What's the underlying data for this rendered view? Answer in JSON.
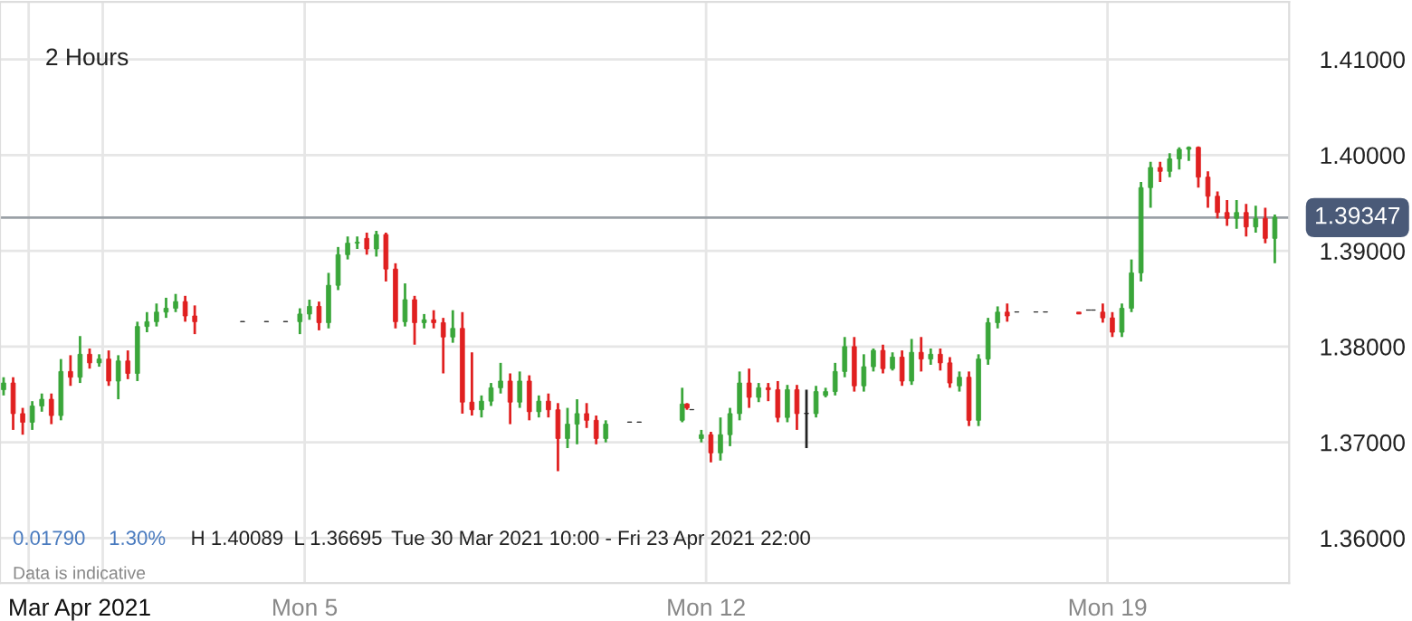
{
  "chart_data": {
    "type": "candlestick",
    "x": [
      "2021-03-30T18:00",
      "2021-03-30T22:00",
      "2021-03-31T02:00",
      "2021-03-31T06:00",
      "2021-03-31T10:00",
      "2021-03-31T14:00",
      "2021-03-31T18:00",
      "2021-03-31T22:00",
      "2021-04-01T02:00",
      "2021-04-01T06:00",
      "2021-04-01T10:00",
      "2021-04-01T14:00",
      "2021-04-01T18:00",
      "2021-04-01T22:00",
      "2021-04-02T02:00",
      "2021-04-02T06:00",
      "2021-04-02T10:00",
      "2021-04-02T14:00",
      "2021-04-02T18:00",
      "2021-04-02T22:00",
      "2021-04-03T02:00",
      "2021-04-03T22:00",
      "2021-04-04T08:00",
      "2021-04-04T16:00",
      "2021-04-04T22:00",
      "2021-04-05T02:00",
      "2021-04-05T06:00",
      "2021-04-05T10:00",
      "2021-04-05T14:00",
      "2021-04-05T18:00",
      "2021-04-05T22:00",
      "2021-04-06T02:00",
      "2021-04-06T06:00",
      "2021-04-06T10:00",
      "2021-04-06T14:00",
      "2021-04-06T18:00",
      "2021-04-06T22:00",
      "2021-04-07T02:00",
      "2021-04-07T06:00",
      "2021-04-07T10:00",
      "2021-04-07T14:00",
      "2021-04-07T18:00",
      "2021-04-07T22:00",
      "2021-04-08T02:00",
      "2021-04-08T06:00",
      "2021-04-08T10:00",
      "2021-04-08T14:00",
      "2021-04-08T18:00",
      "2021-04-08T22:00",
      "2021-04-09T02:00",
      "2021-04-09T06:00",
      "2021-04-09T10:00",
      "2021-04-09T14:00",
      "2021-04-09T18:00",
      "2021-04-09T22:00",
      "2021-04-10T02:00",
      "2021-04-10T06:00",
      "2021-04-10T16:00",
      "2021-04-10T20:00",
      "2021-04-11T14:00",
      "2021-04-11T16:00",
      "2021-04-11T18:00",
      "2021-04-11T22:00",
      "2021-04-12T02:00",
      "2021-04-12T06:00",
      "2021-04-12T10:00",
      "2021-04-12T14:00",
      "2021-04-12T18:00",
      "2021-04-12T22:00",
      "2021-04-13T02:00",
      "2021-04-13T06:00",
      "2021-04-13T10:00",
      "2021-04-13T14:00",
      "2021-04-13T18:00",
      "2021-04-13T22:00",
      "2021-04-14T02:00",
      "2021-04-14T06:00",
      "2021-04-14T10:00",
      "2021-04-14T14:00",
      "2021-04-14T18:00",
      "2021-04-14T22:00",
      "2021-04-15T02:00",
      "2021-04-15T06:00",
      "2021-04-15T10:00",
      "2021-04-15T14:00",
      "2021-04-15T18:00",
      "2021-04-15T22:00",
      "2021-04-16T02:00",
      "2021-04-16T06:00",
      "2021-04-16T10:00",
      "2021-04-16T14:00",
      "2021-04-16T18:00",
      "2021-04-16T22:00",
      "2021-04-17T02:00",
      "2021-04-17T06:00",
      "2021-04-17T10:00",
      "2021-04-17T18:00",
      "2021-04-17T22:00",
      "2021-04-18T12:00",
      "2021-04-18T16:00",
      "2021-04-18T18:00",
      "2021-04-18T22:00",
      "2021-04-19T02:00",
      "2021-04-19T06:00",
      "2021-04-19T10:00",
      "2021-04-19T14:00",
      "2021-04-19T18:00",
      "2021-04-19T22:00",
      "2021-04-20T02:00",
      "2021-04-20T06:00",
      "2021-04-20T10:00",
      "2021-04-20T14:00",
      "2021-04-20T18:00",
      "2021-04-20T22:00",
      "2021-04-21T02:00",
      "2021-04-21T06:00",
      "2021-04-21T10:00",
      "2021-04-21T14:00",
      "2021-04-21T18:00",
      "2021-04-21T22:00"
    ],
    "ohlc": [
      [
        1.3755,
        1.3768,
        1.3749,
        1.3762
      ],
      [
        1.3762,
        1.3768,
        1.3713,
        1.373
      ],
      [
        1.373,
        1.3736,
        1.3708,
        1.3721
      ],
      [
        1.3721,
        1.3743,
        1.3713,
        1.3738
      ],
      [
        1.3738,
        1.3751,
        1.3732,
        1.3745
      ],
      [
        1.3745,
        1.3751,
        1.3719,
        1.3728
      ],
      [
        1.3728,
        1.3787,
        1.3723,
        1.3774
      ],
      [
        1.3774,
        1.3791,
        1.3759,
        1.3768
      ],
      [
        1.3768,
        1.3811,
        1.3762,
        1.3792
      ],
      [
        1.3792,
        1.3798,
        1.3777,
        1.3783
      ],
      [
        1.3783,
        1.3792,
        1.3779,
        1.3787
      ],
      [
        1.3787,
        1.3796,
        1.3759,
        1.3764
      ],
      [
        1.3764,
        1.3791,
        1.3745,
        1.3785
      ],
      [
        1.3785,
        1.3796,
        1.3766,
        1.3772
      ],
      [
        1.3772,
        1.3826,
        1.3764,
        1.3821
      ],
      [
        1.3821,
        1.3836,
        1.3815,
        1.3826
      ],
      [
        1.3826,
        1.3845,
        1.3821,
        1.3836
      ],
      [
        1.3836,
        1.3851,
        1.383,
        1.384
      ],
      [
        1.384,
        1.3855,
        1.3836,
        1.3847
      ],
      [
        1.3847,
        1.3853,
        1.3826,
        1.3832
      ],
      [
        1.3832,
        1.3843,
        1.3813,
        1.3826
      ],
      [
        1.3826,
        1.3826,
        1.3826,
        1.3826
      ],
      [
        1.3826,
        1.3826,
        1.3826,
        1.3826
      ],
      [
        1.3826,
        1.3826,
        1.3826,
        1.3826
      ],
      [
        1.3826,
        1.384,
        1.3813,
        1.3834
      ],
      [
        1.3834,
        1.3849,
        1.3828,
        1.3842
      ],
      [
        1.3842,
        1.3847,
        1.3817,
        1.3825
      ],
      [
        1.3825,
        1.3877,
        1.3819,
        1.3864
      ],
      [
        1.3864,
        1.3904,
        1.3859,
        1.3896
      ],
      [
        1.3896,
        1.3915,
        1.3891,
        1.3908
      ],
      [
        1.3908,
        1.3915,
        1.3902,
        1.3909
      ],
      [
        1.3913,
        1.3919,
        1.3896,
        1.3902
      ],
      [
        1.3902,
        1.3921,
        1.3894,
        1.3917
      ],
      [
        1.3917,
        1.3919,
        1.3868,
        1.3881
      ],
      [
        1.3881,
        1.3887,
        1.3819,
        1.3826
      ],
      [
        1.3826,
        1.3866,
        1.3821,
        1.3849
      ],
      [
        1.3849,
        1.3853,
        1.3802,
        1.3825
      ],
      [
        1.3825,
        1.3834,
        1.3819,
        1.3828
      ],
      [
        1.3828,
        1.3838,
        1.3819,
        1.3825
      ],
      [
        1.3825,
        1.383,
        1.3772,
        1.381
      ],
      [
        1.381,
        1.3838,
        1.3804,
        1.3819
      ],
      [
        1.3819,
        1.3836,
        1.373,
        1.3742
      ],
      [
        1.3742,
        1.3794,
        1.3728,
        1.3734
      ],
      [
        1.3734,
        1.3749,
        1.3726,
        1.3743
      ],
      [
        1.3743,
        1.3762,
        1.3738,
        1.3757
      ],
      [
        1.3757,
        1.3783,
        1.3751,
        1.3764
      ],
      [
        1.3764,
        1.3772,
        1.3719,
        1.3742
      ],
      [
        1.3742,
        1.3774,
        1.3736,
        1.3764
      ],
      [
        1.3764,
        1.377,
        1.3723,
        1.3732
      ],
      [
        1.3732,
        1.3749,
        1.3726,
        1.3743
      ],
      [
        1.3743,
        1.3751,
        1.3726,
        1.3734
      ],
      [
        1.3734,
        1.3741,
        1.367,
        1.3704
      ],
      [
        1.3704,
        1.3736,
        1.3694,
        1.3719
      ],
      [
        1.3719,
        1.3745,
        1.3698,
        1.373
      ],
      [
        1.373,
        1.3741,
        1.3715,
        1.3723
      ],
      [
        1.3723,
        1.3728,
        1.3698,
        1.3704
      ],
      [
        1.3704,
        1.3723,
        1.37,
        1.3719
      ],
      [
        1.3721,
        1.3721,
        1.3721,
        1.3721
      ],
      [
        1.3721,
        1.3721,
        1.3721,
        1.3721
      ],
      [
        1.3723,
        1.3757,
        1.3721,
        1.374
      ],
      [
        1.374,
        1.3741,
        1.3734,
        1.3736
      ],
      [
        1.3734,
        1.3734,
        1.3734,
        1.3734
      ],
      [
        1.3704,
        1.3713,
        1.37,
        1.3708
      ],
      [
        1.3708,
        1.3711,
        1.3679,
        1.3689
      ],
      [
        1.3689,
        1.3726,
        1.3681,
        1.3708
      ],
      [
        1.3708,
        1.3736,
        1.3696,
        1.373
      ],
      [
        1.373,
        1.3774,
        1.3723,
        1.3762
      ],
      [
        1.3762,
        1.3777,
        1.3736,
        1.3747
      ],
      [
        1.3747,
        1.3762,
        1.3742,
        1.3757
      ],
      [
        1.3757,
        1.3762,
        1.3743,
        1.3755
      ],
      [
        1.3755,
        1.3764,
        1.3721,
        1.3726
      ],
      [
        1.3726,
        1.376,
        1.3721,
        1.3755
      ],
      [
        1.3755,
        1.376,
        1.3713,
        1.373
      ],
      [
        1.373,
        1.3755,
        1.3694,
        1.373
      ],
      [
        1.373,
        1.3759,
        1.3726,
        1.3753
      ],
      [
        1.3749,
        1.3757,
        1.3747,
        1.3753
      ],
      [
        1.3753,
        1.3783,
        1.3749,
        1.3774
      ],
      [
        1.3774,
        1.381,
        1.3768,
        1.38
      ],
      [
        1.38,
        1.381,
        1.3753,
        1.3759
      ],
      [
        1.3759,
        1.3792,
        1.3753,
        1.3779
      ],
      [
        1.3779,
        1.3798,
        1.3774,
        1.3796
      ],
      [
        1.3796,
        1.3802,
        1.3772,
        1.3777
      ],
      [
        1.3777,
        1.3794,
        1.3775,
        1.3789
      ],
      [
        1.3789,
        1.3796,
        1.3759,
        1.3764
      ],
      [
        1.3764,
        1.3808,
        1.376,
        1.3794
      ],
      [
        1.3794,
        1.381,
        1.3774,
        1.3787
      ],
      [
        1.3787,
        1.3798,
        1.3781,
        1.3792
      ],
      [
        1.3792,
        1.3798,
        1.3775,
        1.3783
      ],
      [
        1.3783,
        1.3789,
        1.3757,
        1.3762
      ],
      [
        1.3759,
        1.3774,
        1.3753,
        1.3768
      ],
      [
        1.3768,
        1.3774,
        1.3717,
        1.3723
      ],
      [
        1.3723,
        1.3792,
        1.3717,
        1.3787
      ],
      [
        1.3787,
        1.383,
        1.3781,
        1.3825
      ],
      [
        1.3825,
        1.3842,
        1.3819,
        1.3836
      ],
      [
        1.3836,
        1.3845,
        1.3826,
        1.3832
      ],
      [
        1.3836,
        1.3836,
        1.3836,
        1.3836
      ],
      [
        1.3836,
        1.3836,
        1.3836,
        1.3836
      ],
      [
        1.3836,
        1.3836,
        1.3836,
        1.3836
      ],
      [
        1.3836,
        1.3836,
        1.3834,
        1.3834
      ],
      [
        1.3838,
        1.3838,
        1.3838,
        1.3838
      ],
      [
        1.3838,
        1.3838,
        1.3838,
        1.3838
      ],
      [
        1.3836,
        1.3845,
        1.3825,
        1.383
      ],
      [
        1.383,
        1.3836,
        1.381,
        1.3815
      ],
      [
        1.3815,
        1.3845,
        1.381,
        1.384
      ],
      [
        1.384,
        1.3891,
        1.3836,
        1.3877
      ],
      [
        1.3877,
        1.3972,
        1.3868,
        1.3966
      ],
      [
        1.3966,
        1.3993,
        1.3945,
        1.3987
      ],
      [
        1.3987,
        1.3993,
        1.3972,
        1.3983
      ],
      [
        1.3983,
        1.4002,
        1.3977,
        1.3996
      ],
      [
        1.3996,
        1.4008,
        1.3985,
        1.4006
      ],
      [
        1.4006,
        1.4009,
        1.3994,
        1.4008
      ],
      [
        1.4008,
        1.4009,
        1.3966,
        1.3977
      ],
      [
        1.3977,
        1.3983,
        1.3945,
        1.3957
      ],
      [
        1.3957,
        1.3962,
        1.3934,
        1.394
      ],
      [
        1.394,
        1.3953,
        1.3926,
        1.3934
      ],
      [
        1.3934,
        1.3953,
        1.3923,
        1.394
      ],
      [
        1.394,
        1.3949,
        1.3915,
        1.3925
      ],
      [
        1.3925,
        1.3947,
        1.3919,
        1.3934
      ],
      [
        1.3934,
        1.3945,
        1.3908,
        1.3913
      ],
      [
        1.3913,
        1.3938,
        1.3887,
        1.3935
      ]
    ],
    "xlim": [
      "2021-03-30T16:30",
      "2021-04-22T04:00"
    ],
    "xticks": [
      {
        "value": "2021-03-31T04:30",
        "label": "Mar"
      },
      {
        "value": "2021-04-01T11:30",
        "label": "Apr 2021"
      },
      {
        "value": "2021-04-05",
        "label": "Mon 5"
      },
      {
        "value": "2021-04-12",
        "label": "Mon 12"
      },
      {
        "value": "2021-04-19",
        "label": "Mon 19"
      }
    ],
    "ylim": [
      1.3553,
      1.416
    ],
    "yticks": [
      {
        "value": 1.36,
        "label": "1.36000"
      },
      {
        "value": 1.37,
        "label": "1.37000"
      },
      {
        "value": 1.38,
        "label": "1.38000"
      },
      {
        "value": 1.39,
        "label": "1.39000"
      },
      {
        "value": 1.4,
        "label": "1.40000"
      },
      {
        "value": 1.41,
        "label": "1.41000"
      }
    ],
    "grid": true,
    "legend": false,
    "ref_lines": [
      {
        "axis": "y",
        "value": 1.39347,
        "label": "1.39347",
        "color": "#9aa0a6"
      }
    ],
    "annotations": [
      "2 Hours",
      "0.01790",
      "1.30%",
      "H 1.40089",
      "L 1.36695",
      "Tue 30 Mar 2021 10:00 - Fri 23 Apr 2021 22:00",
      "Data is indicative"
    ]
  }
}
